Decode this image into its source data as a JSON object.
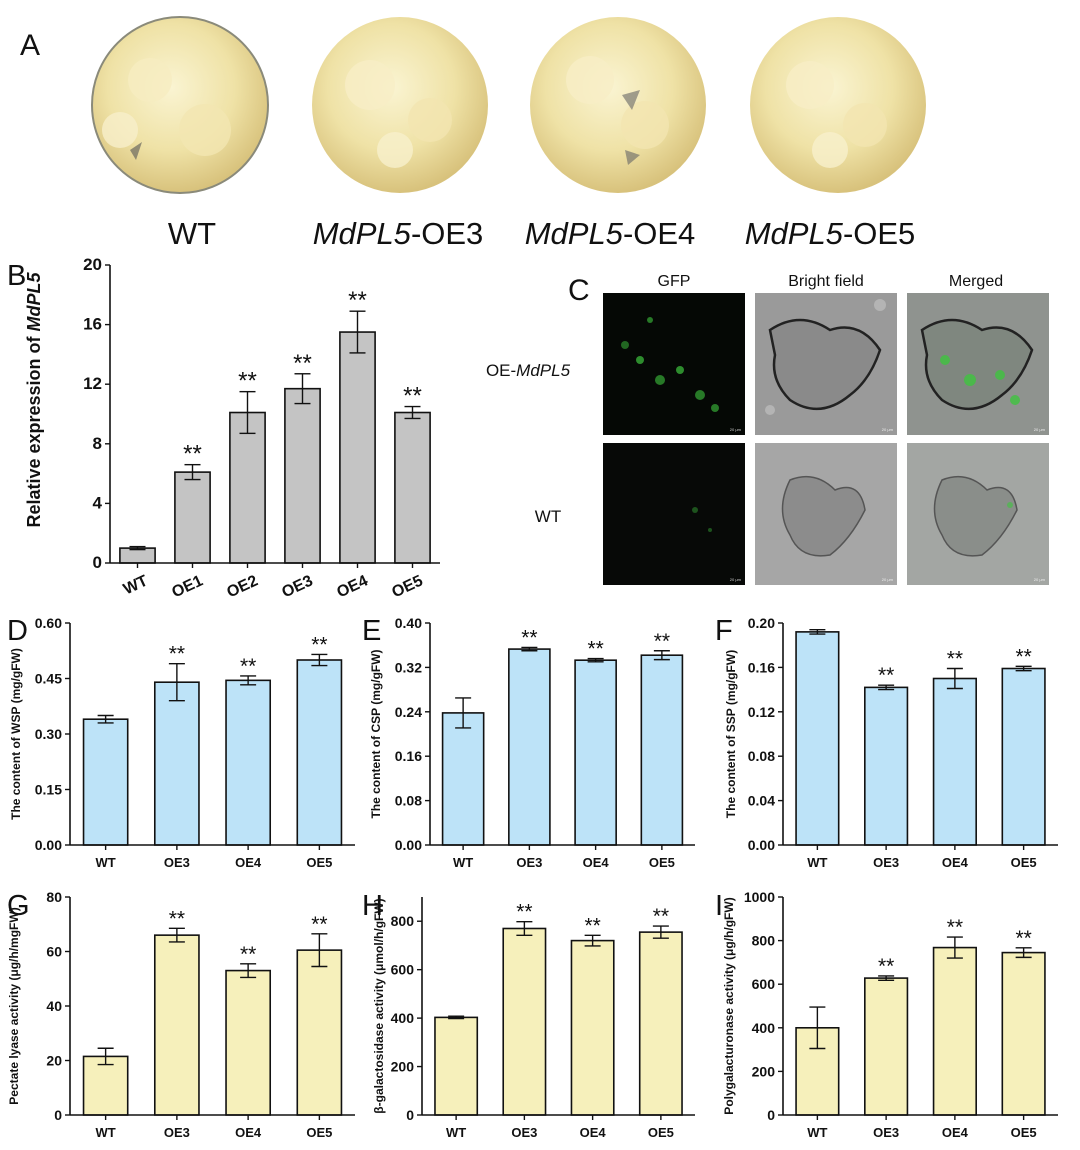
{
  "panel_a": {
    "letter": "A",
    "labels": [
      {
        "prefix": "",
        "italic": "",
        "suffix": "WT"
      },
      {
        "prefix": "",
        "italic": "MdPL5",
        "suffix": "-OE3"
      },
      {
        "prefix": "",
        "italic": "MdPL5",
        "suffix": "-OE4"
      },
      {
        "prefix": "",
        "italic": "MdPL5",
        "suffix": "-OE5"
      }
    ]
  },
  "panel_c": {
    "letter": "C",
    "columns": [
      "GFP",
      "Bright field",
      "Merged"
    ],
    "row_labels": [
      {
        "prefix": "OE-",
        "italic": "MdPL5"
      },
      {
        "prefix": "WT",
        "italic": ""
      }
    ],
    "scale_label": "20 μm"
  },
  "significance_marker": "**",
  "colors": {
    "gray_bar": "#c4c4c4",
    "blue_bar": "#bde3f8",
    "yellow_bar": "#f6f0bb",
    "axis": "#111111",
    "gfp_green": "#3ec43e"
  },
  "chart_data": [
    {
      "panel": "B",
      "type": "bar",
      "ylabel_prefix": "Relative expression of ",
      "ylabel_italic": "MdPL5",
      "categories": [
        "WT",
        "OE1",
        "OE2",
        "OE3",
        "OE4",
        "OE5"
      ],
      "values": [
        1.0,
        6.1,
        10.1,
        11.7,
        15.5,
        10.1
      ],
      "errors": [
        0.1,
        0.5,
        1.4,
        1.0,
        1.4,
        0.4
      ],
      "significant": [
        false,
        true,
        true,
        true,
        true,
        true
      ],
      "ylim": [
        0,
        20
      ],
      "yticks": [
        0,
        4,
        8,
        12,
        16,
        20
      ],
      "tick_labels": [
        "0",
        "4",
        "8",
        "12",
        "16",
        "20"
      ],
      "color": "gray_bar",
      "rotate_xlabels": true
    },
    {
      "panel": "D",
      "type": "bar",
      "ylabel_prefix": "The content of WSP (mg/gFW)",
      "ylabel_italic": "",
      "categories": [
        "WT",
        "OE3",
        "OE4",
        "OE5"
      ],
      "values": [
        0.34,
        0.44,
        0.445,
        0.5
      ],
      "errors": [
        0.01,
        0.05,
        0.012,
        0.015
      ],
      "significant": [
        false,
        true,
        true,
        true
      ],
      "ylim": [
        0,
        0.6
      ],
      "yticks": [
        0,
        0.15,
        0.3,
        0.45,
        0.6
      ],
      "tick_labels": [
        "0.00",
        "0.15",
        "0.30",
        "0.45",
        "0.60"
      ],
      "color": "blue_bar"
    },
    {
      "panel": "E",
      "type": "bar",
      "ylabel_prefix": "The content of CSP (mg/gFW)",
      "ylabel_italic": "",
      "categories": [
        "WT",
        "OE3",
        "OE4",
        "OE5"
      ],
      "values": [
        0.238,
        0.353,
        0.333,
        0.342
      ],
      "errors": [
        0.027,
        0.003,
        0.003,
        0.008
      ],
      "significant": [
        false,
        true,
        true,
        true
      ],
      "ylim": [
        0,
        0.4
      ],
      "yticks": [
        0,
        0.08,
        0.16,
        0.24,
        0.32,
        0.4
      ],
      "tick_labels": [
        "0.00",
        "0.08",
        "0.16",
        "0.24",
        "0.32",
        "0.40"
      ],
      "color": "blue_bar"
    },
    {
      "panel": "F",
      "type": "bar",
      "ylabel_prefix": "The content of SSP (mg/gFW)",
      "ylabel_italic": "",
      "categories": [
        "WT",
        "OE3",
        "OE4",
        "OE5"
      ],
      "values": [
        0.192,
        0.142,
        0.15,
        0.159
      ],
      "errors": [
        0.002,
        0.002,
        0.009,
        0.002
      ],
      "significant": [
        false,
        true,
        true,
        true
      ],
      "ylim": [
        0,
        0.2
      ],
      "yticks": [
        0,
        0.04,
        0.08,
        0.12,
        0.16,
        0.2
      ],
      "tick_labels": [
        "0.00",
        "0.04",
        "0.08",
        "0.12",
        "0.16",
        "0.20"
      ],
      "color": "blue_bar"
    },
    {
      "panel": "G",
      "type": "bar",
      "ylabel_prefix": "Pectate lyase activity (μg/h/mgFW)",
      "ylabel_italic": "",
      "categories": [
        "WT",
        "OE3",
        "OE4",
        "OE5"
      ],
      "values": [
        21.5,
        66,
        53,
        60.5
      ],
      "errors": [
        3,
        2.5,
        2.5,
        6
      ],
      "significant": [
        false,
        true,
        true,
        true
      ],
      "ylim": [
        0,
        80
      ],
      "yticks": [
        0,
        20,
        40,
        60,
        80
      ],
      "tick_labels": [
        "0",
        "20",
        "40",
        "60",
        "80"
      ],
      "color": "yellow_bar"
    },
    {
      "panel": "H",
      "type": "bar",
      "ylabel_prefix": "β-galactosidase activity (μmol/h/gFW)",
      "ylabel_italic": "",
      "categories": [
        "WT",
        "OE3",
        "OE4",
        "OE5"
      ],
      "values": [
        403,
        770,
        720,
        755
      ],
      "errors": [
        5,
        28,
        22,
        25
      ],
      "significant": [
        false,
        true,
        true,
        true
      ],
      "ylim": [
        0,
        900
      ],
      "yticks": [
        0,
        200,
        400,
        600,
        800
      ],
      "tick_labels": [
        "0",
        "200",
        "400",
        "600",
        "800"
      ],
      "color": "yellow_bar"
    },
    {
      "panel": "I",
      "type": "bar",
      "ylabel_prefix": "Polygalacturonase activity (μg/h/gFW)",
      "ylabel_italic": "",
      "categories": [
        "WT",
        "OE3",
        "OE4",
        "OE5"
      ],
      "values": [
        400,
        628,
        768,
        745
      ],
      "errors": [
        95,
        10,
        48,
        22
      ],
      "significant": [
        false,
        true,
        true,
        true
      ],
      "ylim": [
        0,
        1000
      ],
      "yticks": [
        0,
        200,
        400,
        600,
        800,
        1000
      ],
      "tick_labels": [
        "0",
        "200",
        "400",
        "600",
        "800",
        "1000"
      ],
      "color": "yellow_bar"
    }
  ]
}
